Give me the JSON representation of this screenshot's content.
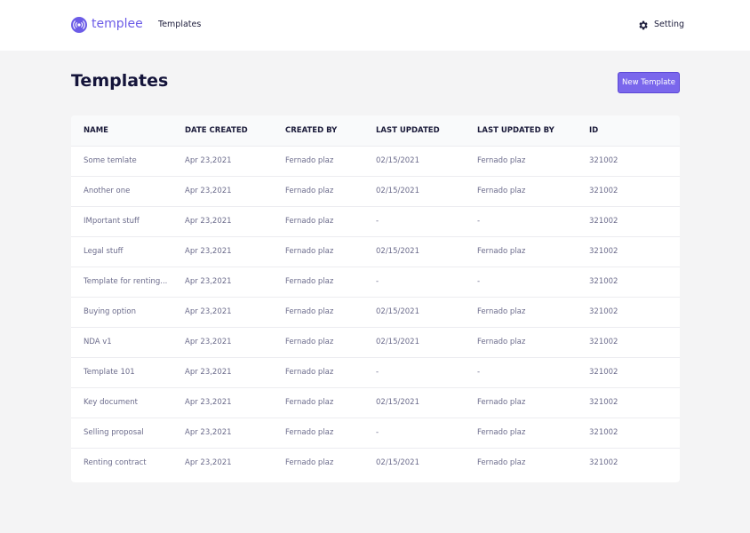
{
  "nav": {
    "logo": "templee",
    "links": [
      "Templates"
    ],
    "setting": "Setting"
  },
  "header": {
    "title": "Templates",
    "button": "New Template"
  },
  "table": {
    "columns": [
      "NAME",
      "DATE CREATED",
      "CREATED BY",
      "LAST UPDATED",
      "LAST UPDATED BY",
      "ID"
    ],
    "rows": [
      [
        "Some temlate",
        "Apr 23,2021",
        "Fernado plaz",
        "02/15/2021",
        "Fernado plaz",
        "321002"
      ],
      [
        "Another one",
        "Apr 23,2021",
        "Fernado plaz",
        "02/15/2021",
        "Fernado plaz",
        "321002"
      ],
      [
        "IMportant stuff",
        "Apr 23,2021",
        "Fernado plaz",
        "-",
        "-",
        "321002"
      ],
      [
        "Legal stuff",
        "Apr 23,2021",
        "Fernado plaz",
        "02/15/2021",
        "Fernado plaz",
        "321002"
      ],
      [
        "Template for renting...",
        "Apr 23,2021",
        "Fernado plaz",
        "-",
        "-",
        "321002"
      ],
      [
        "Buying option",
        "Apr 23,2021",
        "Fernado plaz",
        "02/15/2021",
        "Fernado plaz",
        "321002"
      ],
      [
        "NDA v1",
        "Apr 23,2021",
        "Fernado plaz",
        "02/15/2021",
        "Fernado plaz",
        "321002"
      ],
      [
        "Template 101",
        "Apr 23,2021",
        "Fernado plaz",
        "-",
        "-",
        "321002"
      ],
      [
        "Key document",
        "Apr 23,2021",
        "Fernado plaz",
        "02/15/2021",
        "Fernado plaz",
        "321002"
      ],
      [
        "Selling proposal",
        "Apr 23,2021",
        "Fernado plaz",
        "-",
        "Fernado plaz",
        "321002"
      ],
      [
        "Renting contract",
        "Apr 23,2021",
        "Fernado plaz",
        "02/15/2021",
        "Fernado plaz",
        "321002"
      ]
    ]
  }
}
